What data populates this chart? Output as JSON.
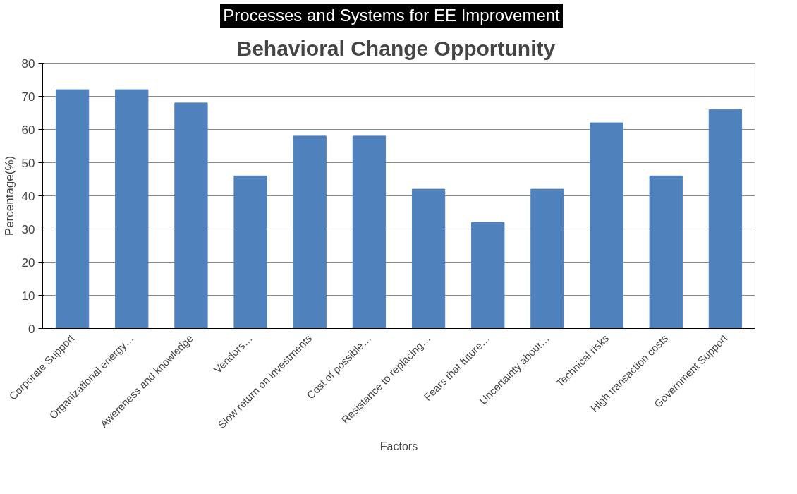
{
  "chart_data": {
    "type": "bar",
    "subtitle": "Processes and Systems for EE Improvement",
    "title": "Behavioral  Change Opportunity",
    "xlabel": "Factors",
    "ylabel": "Percentage(%)",
    "categories": [
      "Corporate Support",
      "Organizational energy…",
      "Awereness and knowledge",
      "Vendors…",
      "Slow return on investments",
      "Cost of possible…",
      "Resistance to replacing…",
      "Fears that future…",
      "Uncertainty about…",
      "Technical risks",
      "High transaction costs",
      "Government Support"
    ],
    "values": [
      72,
      72,
      68,
      46,
      58,
      58,
      42,
      32,
      42,
      62,
      46,
      66
    ],
    "color": "#4f81bd",
    "ylim": [
      0,
      80
    ],
    "yticks": [
      0,
      10,
      20,
      30,
      40,
      50,
      60,
      70,
      80
    ],
    "grid": "y"
  }
}
